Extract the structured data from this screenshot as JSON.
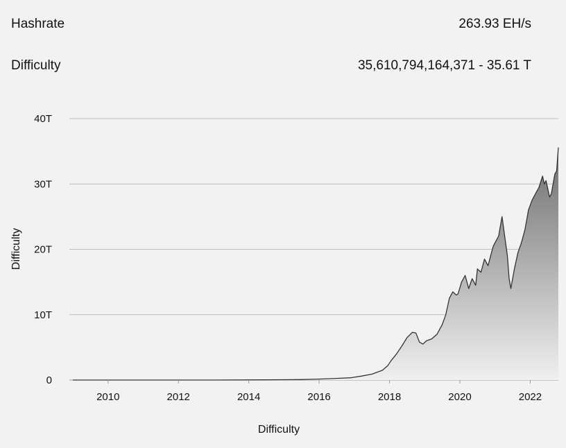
{
  "stats": [
    {
      "label": "Hashrate",
      "value": "263.93 EH/s"
    },
    {
      "label": "Difficulty",
      "value": "35,610,794,164,371 - 35.61 T"
    }
  ],
  "chart_data": {
    "type": "area",
    "title": "",
    "xlabel": "Difficulty",
    "ylabel": "Difficulty",
    "x_unit": "year",
    "xlim": [
      2008.9,
      2022.8
    ],
    "ylim": [
      0,
      40
    ],
    "x_ticks": [
      {
        "value": 2010,
        "label": "2010"
      },
      {
        "value": 2012,
        "label": "2012"
      },
      {
        "value": 2014,
        "label": "2014"
      },
      {
        "value": 2016,
        "label": "2016"
      },
      {
        "value": 2018,
        "label": "2018"
      },
      {
        "value": 2020,
        "label": "2020"
      },
      {
        "value": 2022,
        "label": "2022"
      }
    ],
    "y_ticks": [
      {
        "value": 0,
        "label": "0"
      },
      {
        "value": 10,
        "label": "10T"
      },
      {
        "value": 20,
        "label": "20T"
      },
      {
        "value": 30,
        "label": "30T"
      },
      {
        "value": 40,
        "label": "40T"
      }
    ],
    "grid": true,
    "fill_gradient": [
      "#6e6e6e",
      "#f0f0f0"
    ],
    "line_color": "#333333",
    "series": [
      {
        "x": [
          2009.0,
          2010.0,
          2011.0,
          2012.0,
          2013.0,
          2014.0,
          2014.5,
          2015.0,
          2015.5,
          2016.0,
          2016.5,
          2016.9,
          2017.2,
          2017.5,
          2017.8,
          2017.95,
          2018.05,
          2018.2,
          2018.35,
          2018.5,
          2018.65,
          2018.75,
          2018.85,
          2018.95,
          2019.05,
          2019.2,
          2019.35,
          2019.5,
          2019.6,
          2019.7,
          2019.8,
          2019.9,
          2019.95,
          2020.05,
          2020.15,
          2020.25,
          2020.35,
          2020.45,
          2020.5,
          2020.6,
          2020.7,
          2020.8,
          2020.9,
          2020.95,
          2021.0,
          2021.1,
          2021.2,
          2021.3,
          2021.35,
          2021.4,
          2021.45,
          2021.55,
          2021.65,
          2021.75,
          2021.85,
          2021.95,
          2022.05,
          2022.15,
          2022.25,
          2022.35,
          2022.4,
          2022.45,
          2022.55,
          2022.6,
          2022.7,
          2022.75,
          2022.8
        ],
        "y": [
          0,
          0,
          0,
          0,
          0,
          0.02,
          0.03,
          0.05,
          0.07,
          0.15,
          0.25,
          0.35,
          0.6,
          0.9,
          1.5,
          2.2,
          3.0,
          4.0,
          5.2,
          6.5,
          7.3,
          7.2,
          5.8,
          5.5,
          6.0,
          6.3,
          7.0,
          8.5,
          10.0,
          12.5,
          13.5,
          13.0,
          13.2,
          15.0,
          16.0,
          14.0,
          15.5,
          14.5,
          17.0,
          16.5,
          18.5,
          17.5,
          19.5,
          20.5,
          21.0,
          22.0,
          25.0,
          21.0,
          19.0,
          15.5,
          14.0,
          17.0,
          19.5,
          21.0,
          23.0,
          26.0,
          27.5,
          28.5,
          29.5,
          31.2,
          30.0,
          30.5,
          28.0,
          28.5,
          31.5,
          32.0,
          35.6
        ]
      }
    ]
  }
}
